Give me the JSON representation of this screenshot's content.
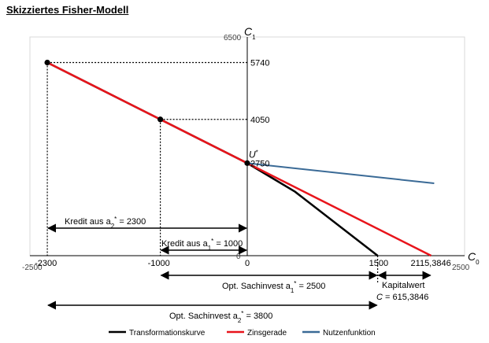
{
  "page_title": "Skizziertes Fisher-Modell",
  "chart_data": {
    "type": "line",
    "title": "Skizziertes Fisher-Modell",
    "xlabel": "C",
    "xlabel_sub": "0",
    "ylabel": "C",
    "ylabel_sub": "1",
    "xlim": [
      -2500,
      2500
    ],
    "ylim": [
      0,
      6500
    ],
    "x_ticks": [
      {
        "x": -2500,
        "label": "-2500"
      },
      {
        "x": -2300,
        "label": "-2300"
      },
      {
        "x": -1000,
        "label": "-1000"
      },
      {
        "x": 0,
        "label": "0"
      },
      {
        "x": 1500,
        "label": "1500"
      },
      {
        "x": 2115.3846,
        "label": "2115,3846"
      },
      {
        "x": 2500,
        "label": "2500"
      }
    ],
    "y_ticks": [
      {
        "y": 6500,
        "label": "6500"
      },
      {
        "y": 5740,
        "label": "5740"
      },
      {
        "y": 4050,
        "label": "4050"
      },
      {
        "y": 2750,
        "label": "2750"
      },
      {
        "y": 0,
        "label": "0"
      }
    ],
    "series": [
      {
        "name": "Transformationskurve",
        "color": "#000000",
        "points": [
          [
            -2300,
            5740
          ],
          [
            -1000,
            4050
          ],
          [
            0,
            2750
          ],
          [
            550,
            1900
          ],
          [
            1500,
            0
          ]
        ]
      },
      {
        "name": "Zinsgerade",
        "color": "#e8141b",
        "points": [
          [
            -2300,
            5740
          ],
          [
            2115.3846,
            0
          ]
        ]
      },
      {
        "name": "Nutzenfunktion",
        "color": "#3a6a96",
        "points": [
          [
            0,
            2750
          ],
          [
            2150,
            2150
          ]
        ]
      }
    ],
    "points": [
      {
        "x": -2300,
        "y": 5740,
        "label": ""
      },
      {
        "x": -1000,
        "y": 4050,
        "label": ""
      },
      {
        "x": 0,
        "y": 2750,
        "label": "U",
        "label_sup": "*"
      }
    ],
    "annotations": {
      "kredit_a2": "Kredit aus a",
      "kredit_a2_math": "*",
      "kredit_a2_sub": "2",
      "kredit_a2_value": " = 2300",
      "kredit_a1": "Kredit aus a",
      "kredit_a1_sub": "1",
      "kredit_a1_value": " = 1000",
      "sachinvest_a1": "Opt. Sachinvest a",
      "sachinvest_a1_sub": "1",
      "sachinvest_a1_value": " = 2500",
      "sachinvest_a2": "Opt. Sachinvest a",
      "sachinvest_a2_sub": "2",
      "sachinvest_a2_value": " = 3800",
      "kapitalwert": "Kapitalwert",
      "kapitalwert_value": "C = 615,3846",
      "star": "*"
    },
    "legend_position": "bottom",
    "grid": false
  }
}
